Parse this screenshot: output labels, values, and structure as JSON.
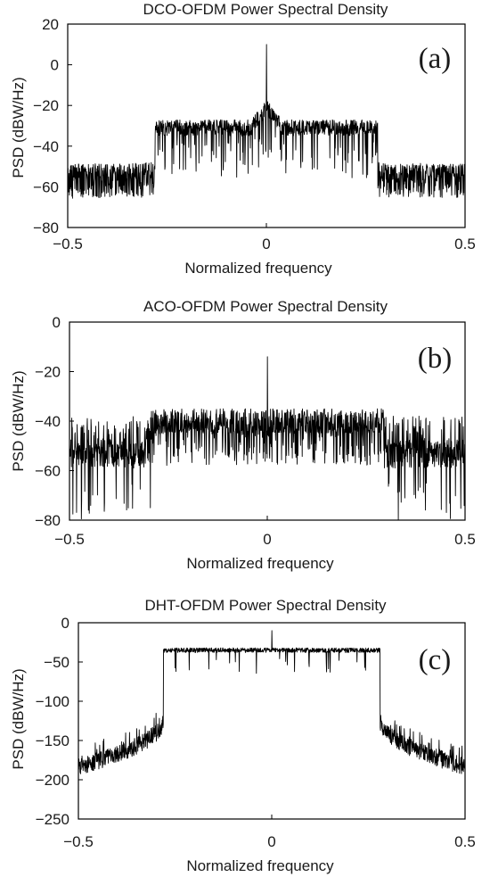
{
  "chart_data": [
    {
      "type": "line",
      "title": "DCO-OFDM Power Spectral Density",
      "panel_label": "(a)",
      "xlabel": "Normalized frequency",
      "ylabel": "PSD (dBW/Hz)",
      "xlim": [
        -0.5,
        0.5
      ],
      "ylim": [
        -80,
        20
      ],
      "xticks": [
        -0.5,
        0,
        0.5
      ],
      "xtick_labels": [
        "−0.5",
        "0",
        "0.5"
      ],
      "yticks": [
        20,
        0,
        -20,
        -40,
        -60,
        -80
      ],
      "ytick_labels": [
        "20",
        "0",
        "−20",
        "−40",
        "−60",
        "−80"
      ],
      "grid": false,
      "series": [
        {
          "values_summary": "Noisy PSD: in-band (|f| < 0.28) mean about -30 dBW/Hz with dips to -55; out-of-band floor about -52 to -55 dBW/Hz with dips to -65; DC spike near 0",
          "points": [
            [
              -0.5,
              -52
            ],
            [
              -0.4,
              -53
            ],
            [
              -0.3,
              -50
            ],
            [
              -0.28,
              -30
            ],
            [
              -0.2,
              -30
            ],
            [
              -0.1,
              -30
            ],
            [
              -0.02,
              -22
            ],
            [
              0,
              10
            ],
            [
              0.02,
              -22
            ],
            [
              0.1,
              -30
            ],
            [
              0.2,
              -30
            ],
            [
              0.28,
              -30
            ],
            [
              0.3,
              -50
            ],
            [
              0.4,
              -53
            ],
            [
              0.5,
              -55
            ]
          ]
        }
      ]
    },
    {
      "type": "line",
      "title": "ACO-OFDM Power Spectral Density",
      "panel_label": "(b)",
      "xlabel": "Normalized frequency",
      "ylabel": "PSD (dBW/Hz)",
      "xlim": [
        -0.5,
        0.5
      ],
      "ylim": [
        -80,
        0
      ],
      "xticks": [
        -0.5,
        0,
        0.5
      ],
      "xtick_labels": [
        "−0.5",
        "0",
        "0.5"
      ],
      "yticks": [
        0,
        -20,
        -40,
        -60,
        -80
      ],
      "ytick_labels": [
        "0",
        "−20",
        "−40",
        "−60",
        "−80"
      ],
      "grid": false,
      "series": [
        {
          "values_summary": "Noisy PSD: in-band (|f| < 0.3) about -40 dBW/Hz (range -32 to -60); out-of-band about -55 dBW/Hz (range -37 to -80); DC spike to about -14",
          "points": [
            [
              -0.5,
              -55
            ],
            [
              -0.4,
              -55
            ],
            [
              -0.3,
              -52
            ],
            [
              -0.29,
              -40
            ],
            [
              -0.2,
              -40
            ],
            [
              -0.1,
              -40
            ],
            [
              0,
              -14
            ],
            [
              0.1,
              -40
            ],
            [
              0.2,
              -40
            ],
            [
              0.29,
              -40
            ],
            [
              0.3,
              -52
            ],
            [
              0.4,
              -55
            ],
            [
              0.5,
              -55
            ]
          ]
        }
      ]
    },
    {
      "type": "line",
      "title": "DHT-OFDM Power Spectral Density",
      "panel_label": "(c)",
      "xlabel": "Normalized frequency",
      "ylabel": "PSD (dBW/Hz)",
      "xlim": [
        -0.5,
        0.5
      ],
      "ylim": [
        -250,
        0
      ],
      "xticks": [
        -0.5,
        0,
        0.5
      ],
      "xtick_labels": [
        "−0.5",
        "0",
        "0.5"
      ],
      "yticks": [
        0,
        -50,
        -100,
        -150,
        -200,
        -250
      ],
      "ytick_labels": [
        "0",
        "−50",
        "−100",
        "−150",
        "−200",
        "−250"
      ],
      "grid": false,
      "series": [
        {
          "values_summary": "Flat in-band (|f| < 0.28) about -35 dBW/Hz; sharp roll-off at |f| = 0.28 to about -120; out-of-band decays from -120 to about -170 at the edges; small DC spike near -15",
          "points": [
            [
              -0.5,
              -168
            ],
            [
              -0.4,
              -150
            ],
            [
              -0.3,
              -125
            ],
            [
              -0.285,
              -110
            ],
            [
              -0.28,
              -35
            ],
            [
              -0.2,
              -35
            ],
            [
              -0.1,
              -35
            ],
            [
              0,
              -15
            ],
            [
              0.1,
              -35
            ],
            [
              0.2,
              -35
            ],
            [
              0.28,
              -35
            ],
            [
              0.285,
              -110
            ],
            [
              0.3,
              -125
            ],
            [
              0.4,
              -150
            ],
            [
              0.5,
              -168
            ]
          ]
        }
      ]
    }
  ]
}
